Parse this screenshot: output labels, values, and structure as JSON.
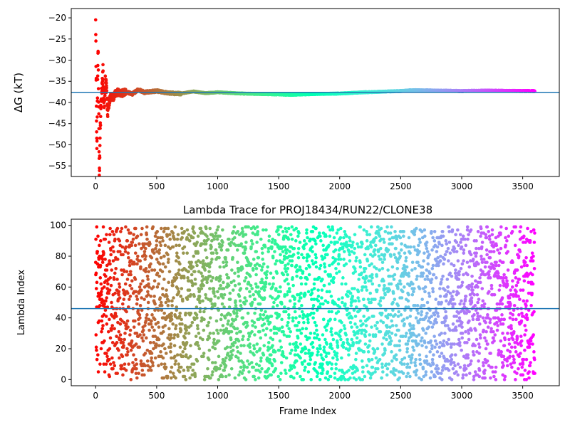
{
  "chart_data": [
    {
      "type": "scatter",
      "title": "",
      "xlabel": "",
      "ylabel": "ΔG (kT)",
      "xlim": [
        -200,
        3800
      ],
      "ylim": [
        -57.5,
        -17.8
      ],
      "xticks": [
        0,
        500,
        1000,
        1500,
        2000,
        2500,
        3000,
        3500
      ],
      "xtick_labels": [
        "0",
        "500",
        "1000",
        "1500",
        "2000",
        "2500",
        "3000",
        "3500"
      ],
      "yticks": [
        -55,
        -50,
        -45,
        -40,
        -35,
        -30,
        -25,
        -20
      ],
      "ytick_labels": [
        "−55",
        "−50",
        "−45",
        "−40",
        "−35",
        "−30",
        "−25",
        "−20"
      ],
      "n_frames": 3600,
      "colormap": "rainbow (red at frame 0 → violet at last frame, colour by frame index; same colour per frame as lower panel)",
      "hline": {
        "y": -37.6,
        "color": "#1f77b4"
      },
      "trace_profile": {
        "description": "Cumulative free-energy estimate: wide scatter at start, damped oscillation converging to about -37.6",
        "x": [
          0,
          10,
          20,
          30,
          40,
          50,
          60,
          70,
          80,
          90,
          100,
          120,
          140,
          160,
          180,
          200,
          250,
          300,
          350,
          400,
          500,
          600,
          700,
          800,
          900,
          1000,
          1200,
          1500,
          1600,
          1800,
          2000,
          2200,
          2500,
          2600,
          3000,
          3200,
          3500,
          3600
        ],
        "y": [
          -20,
          -52,
          -26,
          -57,
          -44,
          -37,
          -33,
          -41,
          -35,
          -38,
          -42,
          -38.5,
          -39,
          -38,
          -37.5,
          -38,
          -37.5,
          -38,
          -37,
          -37.6,
          -37.3,
          -37.8,
          -37.9,
          -37.4,
          -37.8,
          -37.6,
          -37.9,
          -38.1,
          -38.2,
          -38.0,
          -37.9,
          -37.6,
          -37.3,
          -37.1,
          -37.3,
          -37.2,
          -37.3,
          -37.3
        ]
      },
      "series": [
        {
          "name": "",
          "marker_size": 5
        }
      ]
    },
    {
      "type": "scatter",
      "title": "Lambda Trace for PROJ18434/RUN22/CLONE38",
      "xlabel": "Frame Index",
      "ylabel": "Lambda Index",
      "xlim": [
        -200,
        3800
      ],
      "ylim": [
        -4,
        104
      ],
      "xticks": [
        0,
        500,
        1000,
        1500,
        2000,
        2500,
        3000,
        3500
      ],
      "xtick_labels": [
        "0",
        "500",
        "1000",
        "1500",
        "2000",
        "2500",
        "3000",
        "3500"
      ],
      "yticks": [
        0,
        20,
        40,
        60,
        80,
        100
      ],
      "ytick_labels": [
        "0",
        "20",
        "40",
        "60",
        "80",
        "100"
      ],
      "n_frames": 3600,
      "value_range": [
        0,
        99
      ],
      "distribution": "lambda index sampled roughly uniformly over 0-99 for every frame",
      "colormap": "rainbow (red at frame 0 → violet at last frame, colour by frame index)",
      "hline": {
        "y": 46,
        "color": "#1f77b4"
      },
      "series": [
        {
          "name": "",
          "marker_size": 5
        }
      ]
    }
  ]
}
